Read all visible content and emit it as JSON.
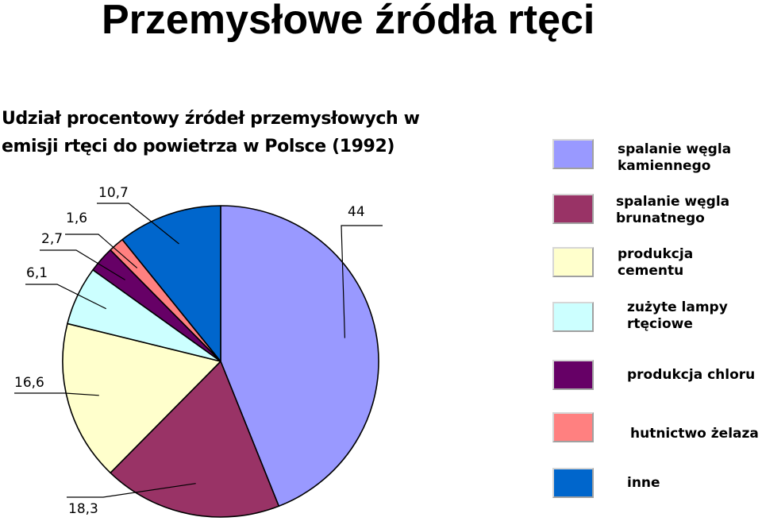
{
  "slide": {
    "title": "Przemysłowe źródła rtęci"
  },
  "chart_data": {
    "type": "pie",
    "title_lines": [
      "Udział procentowy źródeł przemysłowych w",
      "emisji rtęci do powietrza w Polsce (1992)"
    ],
    "legend_position": "right",
    "slices": [
      {
        "label_lines": [
          "spalanie węgla",
          "kamiennego"
        ],
        "value": 44,
        "value_label": "44",
        "color": "#9999ff"
      },
      {
        "label_lines": [
          "spalanie węgla",
          "brunatnego"
        ],
        "value": 18.3,
        "value_label": "18,3",
        "color": "#993366"
      },
      {
        "label_lines": [
          "produkcja",
          "cementu"
        ],
        "value": 16.6,
        "value_label": "16,6",
        "color": "#ffffcc"
      },
      {
        "label_lines": [
          "zużyte lampy",
          "rtęciowe"
        ],
        "value": 6.1,
        "value_label": "6,1",
        "color": "#ccffff"
      },
      {
        "label_lines": [
          "produkcja chloru"
        ],
        "value": 2.7,
        "value_label": "2,7",
        "color": "#660066"
      },
      {
        "label_lines": [
          "hutnictwo żelaza"
        ],
        "value": 1.6,
        "value_label": "1,6",
        "color": "#ff8080"
      },
      {
        "label_lines": [
          "inne"
        ],
        "value": 10.7,
        "value_label": "10,7",
        "color": "#0066cc"
      }
    ]
  }
}
